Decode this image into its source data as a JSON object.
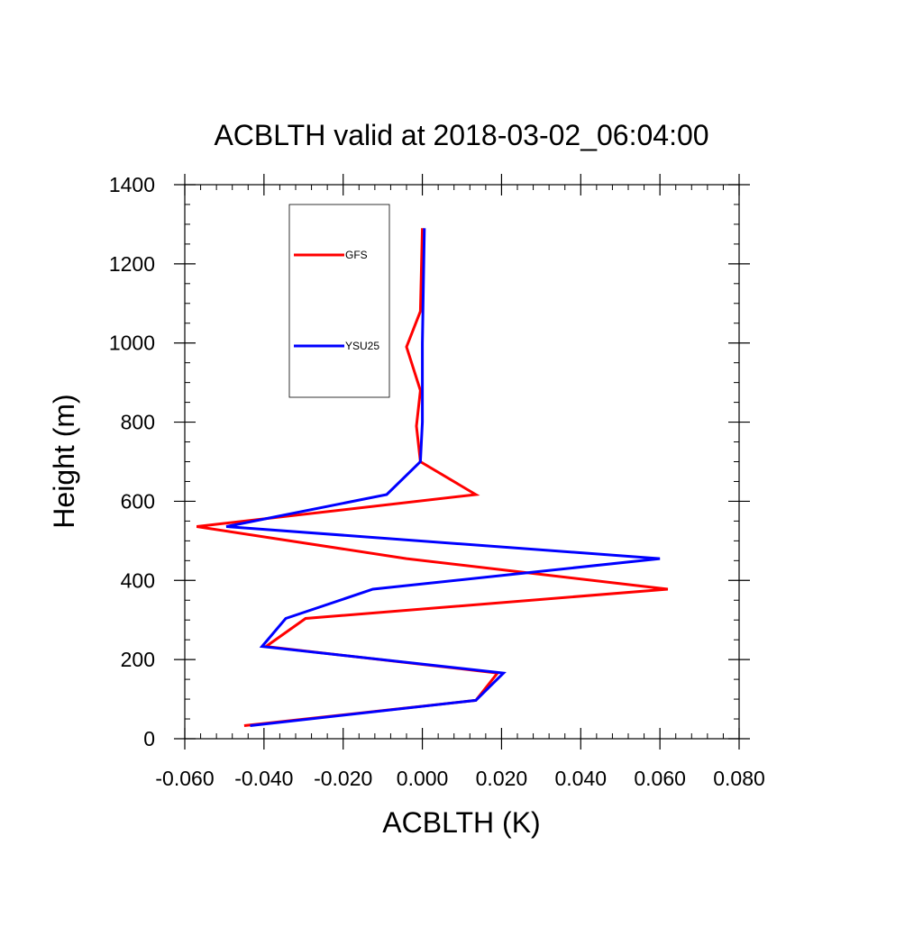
{
  "chart_data": {
    "type": "line",
    "title": "ACBLTH valid at 2018-03-02_06:04:00",
    "xlabel": "ACBLTH (K)",
    "ylabel": "Height (m)",
    "xlim": [
      -0.06,
      0.08
    ],
    "ylim": [
      0,
      1400
    ],
    "x_ticks": [
      -0.06,
      -0.04,
      -0.02,
      0.0,
      0.02,
      0.04,
      0.06,
      0.08
    ],
    "x_tick_labels": [
      "-0.060",
      "-0.040",
      "-0.020",
      "0.000",
      "0.020",
      "0.040",
      "0.060",
      "0.080"
    ],
    "y_ticks": [
      0,
      200,
      400,
      600,
      800,
      1000,
      1200,
      1400
    ],
    "y_tick_labels": [
      "0",
      "200",
      "400",
      "600",
      "800",
      "1000",
      "1200",
      "1400"
    ],
    "grid": false,
    "legend_position": "top-left",
    "series": [
      {
        "name": "GFS",
        "color": "#ff0000",
        "points": [
          [
            -0.045,
            33
          ],
          [
            0.0135,
            97
          ],
          [
            0.019,
            166
          ],
          [
            -0.0395,
            233
          ],
          [
            -0.0295,
            304
          ],
          [
            0.062,
            378
          ],
          [
            -0.004,
            455
          ],
          [
            -0.057,
            536
          ],
          [
            0.0135,
            617
          ],
          [
            -0.0005,
            700
          ],
          [
            -0.0015,
            790
          ],
          [
            -0.0005,
            880
          ],
          [
            -0.004,
            990
          ],
          [
            -0.0005,
            1080
          ],
          [
            0.0,
            1290
          ]
        ]
      },
      {
        "name": "YSU25",
        "color": "#0000ff",
        "points": [
          [
            -0.0435,
            33
          ],
          [
            0.0135,
            97
          ],
          [
            0.0205,
            166
          ],
          [
            -0.0405,
            233
          ],
          [
            -0.0345,
            304
          ],
          [
            -0.0125,
            378
          ],
          [
            0.06,
            455
          ],
          [
            -0.0495,
            536
          ],
          [
            -0.009,
            617
          ],
          [
            -0.0005,
            700
          ],
          [
            0.0,
            800
          ],
          [
            0.0,
            1000
          ],
          [
            0.0005,
            1290
          ]
        ]
      }
    ]
  }
}
